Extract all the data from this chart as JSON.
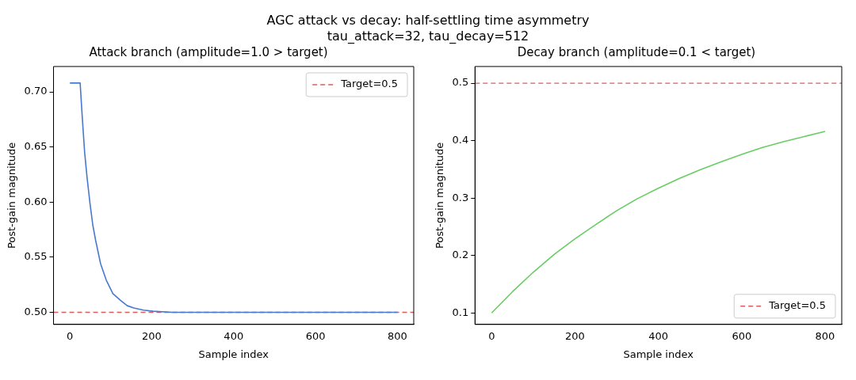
{
  "chart_data": [
    {
      "type": "line",
      "title": "Attack branch (amplitude=1.0 > target)",
      "annotations": [
        "AGC attack vs decay: half-settling time asymmetry",
        "tau_attack=32, tau_decay=512"
      ],
      "xlabel": "Sample index",
      "ylabel": "Post-gain magnitude",
      "series": [
        {
          "color": "#4878d0",
          "x": [
            0,
            25,
            30,
            36,
            42,
            49,
            56,
            63,
            75,
            89,
            105,
            123,
            140,
            156,
            180,
            203,
            250,
            300,
            400,
            500,
            600,
            700,
            800
          ],
          "values": [
            0.708,
            0.708,
            0.678,
            0.645,
            0.622,
            0.599,
            0.579,
            0.565,
            0.544,
            0.529,
            0.517,
            0.511,
            0.506,
            0.504,
            0.502,
            0.501,
            0.5,
            0.5,
            0.5,
            0.5,
            0.5,
            0.5,
            0.5
          ]
        }
      ],
      "xlim": [
        -40,
        840
      ],
      "xticks": [
        0,
        200,
        400,
        600,
        800
      ],
      "ylim": [
        0.489,
        0.723
      ],
      "yticks": [
        {
          "value": 0.5,
          "label": "0.50"
        },
        {
          "value": 0.55,
          "label": "0.55"
        },
        {
          "value": 0.6,
          "label": "0.60"
        },
        {
          "value": 0.65,
          "label": "0.65"
        },
        {
          "value": 0.7,
          "label": "0.70"
        }
      ],
      "ref_lines": [
        {
          "axis": "y",
          "value": 0.5,
          "label": "Target=0.5",
          "color": "#d65f5f",
          "line_style": "dashed"
        }
      ],
      "legend": "top right",
      "grid": false,
      "marker": "none",
      "line_style": "solid"
    },
    {
      "type": "line",
      "title": "Decay branch (amplitude=0.1 < target)",
      "xlabel": "Sample index",
      "ylabel": "Post-gain magnitude",
      "series": [
        {
          "color": "#6acc64",
          "x": [
            0,
            50,
            100,
            150,
            200,
            250,
            300,
            350,
            400,
            450,
            500,
            550,
            600,
            650,
            700,
            750,
            800
          ],
          "values": [
            0.1,
            0.137,
            0.171,
            0.202,
            0.229,
            0.254,
            0.278,
            0.299,
            0.317,
            0.334,
            0.349,
            0.363,
            0.376,
            0.388,
            0.398,
            0.407,
            0.416
          ]
        }
      ],
      "xlim": [
        -40,
        840
      ],
      "xticks": [
        0,
        200,
        400,
        600,
        800
      ],
      "ylim": [
        0.08,
        0.529
      ],
      "yticks": [
        0.1,
        0.2,
        0.3,
        0.4,
        0.5
      ],
      "ref_lines": [
        {
          "axis": "y",
          "value": 0.5,
          "label": "Target=0.5",
          "color": "#d65f5f",
          "line_style": "dashed"
        }
      ],
      "legend": "bottom right",
      "grid": false,
      "marker": "none",
      "line_style": "solid"
    }
  ]
}
